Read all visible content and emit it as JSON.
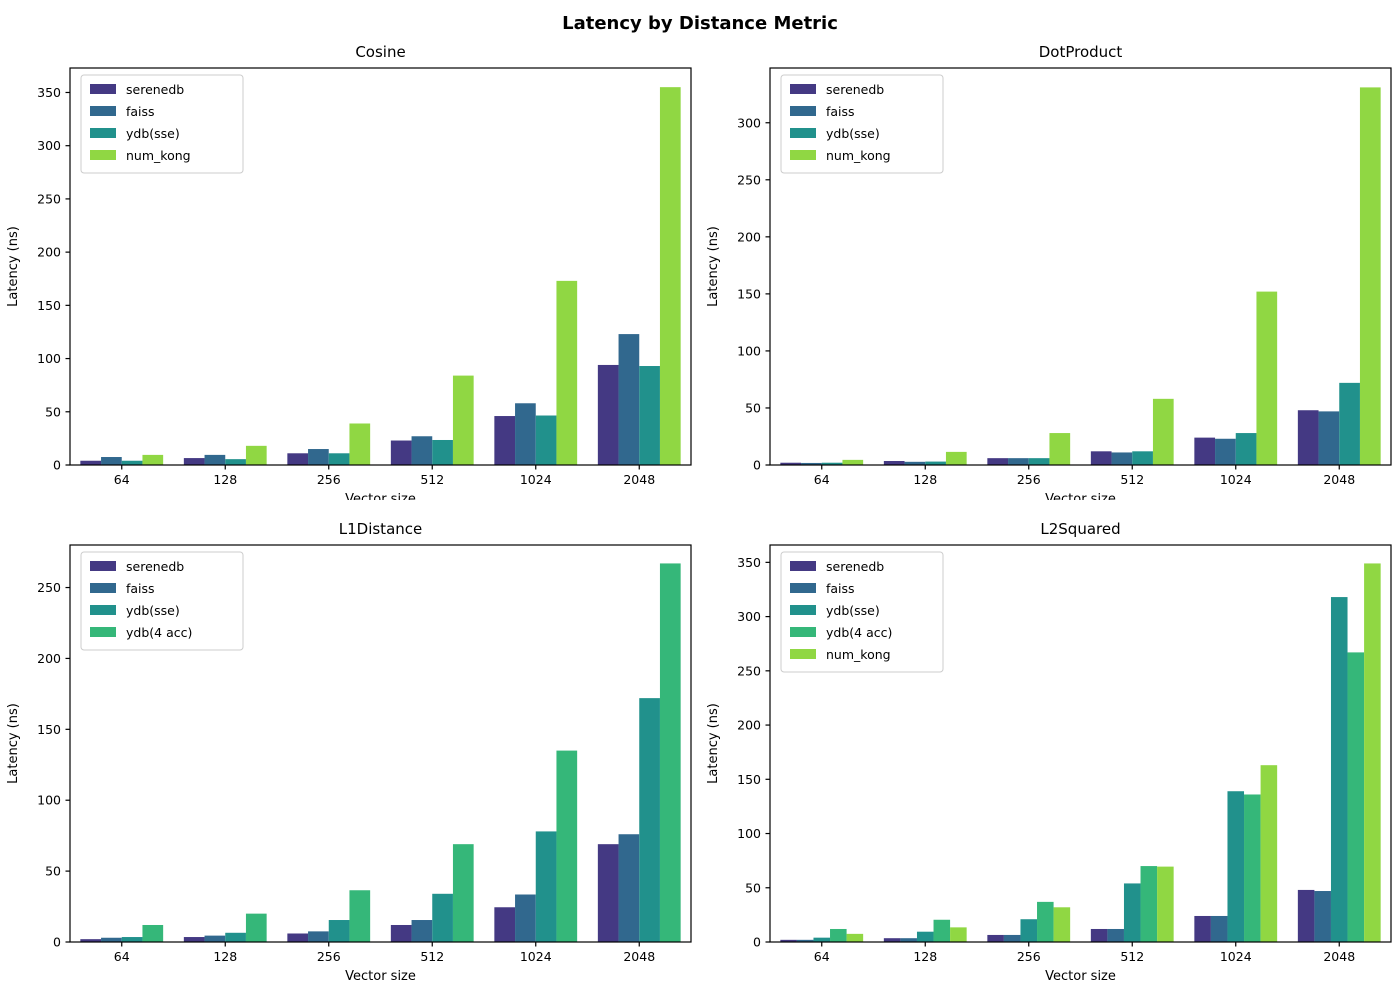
{
  "figure": {
    "suptitle": "Latency by Distance Metric",
    "background": "#ffffff",
    "axis_color": "#000000",
    "legend_border_color": "#cccccc"
  },
  "series_colors": {
    "serenedb": "#443983",
    "faiss": "#31688e",
    "ydb_sse": "#21918c",
    "ydb_4acc": "#35b779",
    "num_kong": "#90d743"
  },
  "chart_data": [
    {
      "type": "bar",
      "title": "Cosine",
      "xlabel": "Vector size",
      "ylabel": "Latency (ns)",
      "categories": [
        "64",
        "128",
        "256",
        "512",
        "1024",
        "2048"
      ],
      "ylim": [
        0,
        373
      ],
      "ytick_step": 50,
      "ytick_max": 350,
      "grid": false,
      "legend_position": "upper-left",
      "series": [
        {
          "name": "serenedb",
          "color": "#443983",
          "values": [
            4,
            6.5,
            11,
            23,
            46,
            94
          ]
        },
        {
          "name": "faiss",
          "color": "#31688e",
          "values": [
            7.5,
            9.5,
            15,
            27,
            58,
            123
          ]
        },
        {
          "name": "ydb(sse)",
          "color": "#21918c",
          "values": [
            4,
            5.5,
            11,
            23.5,
            46.5,
            93
          ]
        },
        {
          "name": "num_kong",
          "color": "#90d743",
          "values": [
            9.5,
            18,
            39,
            84,
            173,
            355
          ]
        }
      ]
    },
    {
      "type": "bar",
      "title": "DotProduct",
      "xlabel": "Vector size",
      "ylabel": "Latency (ns)",
      "categories": [
        "64",
        "128",
        "256",
        "512",
        "1024",
        "2048"
      ],
      "ylim": [
        0,
        348
      ],
      "ytick_step": 50,
      "ytick_max": 300,
      "grid": false,
      "legend_position": "upper-left",
      "series": [
        {
          "name": "serenedb",
          "color": "#443983",
          "values": [
            2,
            3.5,
            6,
            12,
            24,
            48
          ]
        },
        {
          "name": "faiss",
          "color": "#31688e",
          "values": [
            1.8,
            2.8,
            6,
            11,
            23,
            47
          ]
        },
        {
          "name": "ydb(sse)",
          "color": "#21918c",
          "values": [
            2,
            3,
            6,
            12,
            28,
            72
          ]
        },
        {
          "name": "num_kong",
          "color": "#90d743",
          "values": [
            4.5,
            11.5,
            28,
            58,
            152,
            331
          ]
        }
      ]
    },
    {
      "type": "bar",
      "title": "L1Distance",
      "xlabel": "Vector size",
      "ylabel": "Latency (ns)",
      "categories": [
        "64",
        "128",
        "256",
        "512",
        "1024",
        "2048"
      ],
      "ylim": [
        0,
        280
      ],
      "ytick_step": 50,
      "ytick_max": 250,
      "grid": false,
      "legend_position": "upper-left",
      "series": [
        {
          "name": "serenedb",
          "color": "#443983",
          "values": [
            2,
            3.5,
            6,
            12,
            24.5,
            69
          ]
        },
        {
          "name": "faiss",
          "color": "#31688e",
          "values": [
            3,
            4.5,
            7.5,
            15.5,
            33.5,
            76
          ]
        },
        {
          "name": "ydb(sse)",
          "color": "#21918c",
          "values": [
            3.5,
            6.5,
            15.5,
            34,
            78,
            172
          ]
        },
        {
          "name": "ydb(4 acc)",
          "color": "#35b779",
          "values": [
            12,
            20,
            36.5,
            69,
            135,
            267
          ]
        }
      ]
    },
    {
      "type": "bar",
      "title": "L2Squared",
      "xlabel": "Vector size",
      "ylabel": "Latency (ns)",
      "categories": [
        "64",
        "128",
        "256",
        "512",
        "1024",
        "2048"
      ],
      "ylim": [
        0,
        366
      ],
      "ytick_step": 50,
      "ytick_max": 350,
      "grid": false,
      "legend_position": "upper-left",
      "series": [
        {
          "name": "serenedb",
          "color": "#443983",
          "values": [
            2,
            3.5,
            6.5,
            12,
            24,
            48
          ]
        },
        {
          "name": "faiss",
          "color": "#31688e",
          "values": [
            2,
            3.5,
            6.5,
            12,
            24,
            47
          ]
        },
        {
          "name": "ydb(sse)",
          "color": "#21918c",
          "values": [
            4,
            9.5,
            21,
            54,
            139,
            318
          ]
        },
        {
          "name": "ydb(4 acc)",
          "color": "#35b779",
          "values": [
            12,
            20.5,
            37,
            70,
            136,
            267
          ]
        },
        {
          "name": "num_kong",
          "color": "#90d743",
          "values": [
            7.5,
            13.5,
            32,
            69.5,
            163,
            349
          ]
        }
      ]
    }
  ]
}
